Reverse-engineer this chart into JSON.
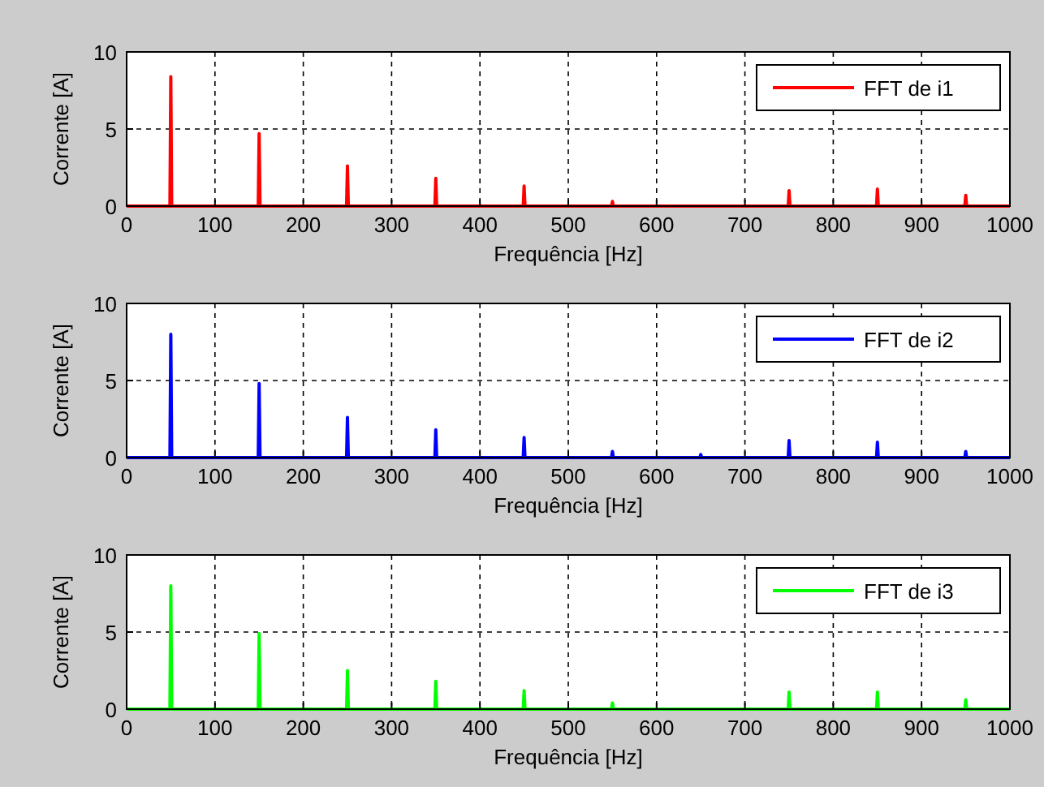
{
  "chart_data": [
    {
      "type": "line",
      "xlabel": "Frequência [Hz]",
      "ylabel": "Corrente [A]",
      "xlim": [
        0,
        1000
      ],
      "ylim": [
        0,
        10
      ],
      "xticks": [
        0,
        100,
        200,
        300,
        400,
        500,
        600,
        700,
        800,
        900,
        1000
      ],
      "yticks": [
        0,
        5,
        10
      ],
      "grid": true,
      "legend": "top right",
      "series": [
        {
          "name": "FFT de i1",
          "color": "#ff0000",
          "x": [
            0,
            49,
            50,
            51,
            149,
            150,
            151,
            249,
            250,
            251,
            349,
            350,
            351,
            449,
            450,
            451,
            549,
            550,
            551,
            749,
            750,
            751,
            849,
            850,
            851,
            949,
            950,
            951,
            1000
          ],
          "values": [
            0,
            0,
            8.4,
            0,
            0,
            4.7,
            0,
            0,
            2.6,
            0,
            0,
            1.8,
            0,
            0,
            1.3,
            0,
            0,
            0.3,
            0,
            0,
            1.0,
            0,
            0,
            1.1,
            0,
            0,
            0.7,
            0,
            0
          ]
        }
      ]
    },
    {
      "type": "line",
      "xlabel": "Frequência [Hz]",
      "ylabel": "Corrente [A]",
      "xlim": [
        0,
        1000
      ],
      "ylim": [
        0,
        10
      ],
      "xticks": [
        0,
        100,
        200,
        300,
        400,
        500,
        600,
        700,
        800,
        900,
        1000
      ],
      "yticks": [
        0,
        5,
        10
      ],
      "grid": true,
      "legend": "top right",
      "series": [
        {
          "name": "FFT de i2",
          "color": "#0000ff",
          "x": [
            0,
            49,
            50,
            51,
            149,
            150,
            151,
            249,
            250,
            251,
            349,
            350,
            351,
            449,
            450,
            451,
            549,
            550,
            551,
            649,
            650,
            651,
            749,
            750,
            751,
            849,
            850,
            851,
            949,
            950,
            951,
            1000
          ],
          "values": [
            0,
            0,
            8.0,
            0,
            0,
            4.8,
            0,
            0,
            2.6,
            0,
            0,
            1.8,
            0,
            0,
            1.3,
            0,
            0,
            0.4,
            0,
            0,
            0.2,
            0,
            0,
            1.1,
            0,
            0,
            1.0,
            0,
            0,
            0.4,
            0,
            0
          ]
        }
      ]
    },
    {
      "type": "line",
      "xlabel": "Frequência [Hz]",
      "ylabel": "Corrente [A]",
      "xlim": [
        0,
        1000
      ],
      "ylim": [
        0,
        10
      ],
      "xticks": [
        0,
        100,
        200,
        300,
        400,
        500,
        600,
        700,
        800,
        900,
        1000
      ],
      "yticks": [
        0,
        5,
        10
      ],
      "grid": true,
      "legend": "top right",
      "series": [
        {
          "name": "FFT de i3",
          "color": "#00ff00",
          "x": [
            0,
            49,
            50,
            51,
            149,
            150,
            151,
            249,
            250,
            251,
            349,
            350,
            351,
            449,
            450,
            451,
            549,
            550,
            551,
            749,
            750,
            751,
            849,
            850,
            851,
            949,
            950,
            951,
            1000
          ],
          "values": [
            0,
            0,
            8.0,
            0,
            0,
            4.9,
            0,
            0,
            2.5,
            0,
            0,
            1.8,
            0,
            0,
            1.2,
            0,
            0,
            0.4,
            0,
            0,
            1.1,
            0,
            0,
            1.1,
            0,
            0,
            0.6,
            0,
            0
          ]
        }
      ]
    }
  ]
}
